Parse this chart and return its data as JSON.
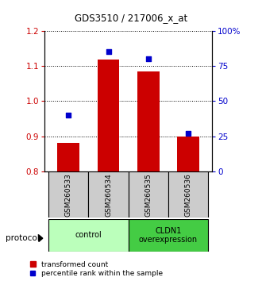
{
  "title": "GDS3510 / 217006_x_at",
  "samples": [
    "GSM260533",
    "GSM260534",
    "GSM260535",
    "GSM260536"
  ],
  "transformed_count": [
    0.882,
    1.118,
    1.085,
    0.9
  ],
  "percentile_rank": [
    40,
    85,
    80,
    27
  ],
  "bar_color": "#cc0000",
  "dot_color": "#0000cc",
  "left_ylim": [
    0.8,
    1.2
  ],
  "left_yticks": [
    0.8,
    0.9,
    1.0,
    1.1,
    1.2
  ],
  "right_ylim": [
    0,
    100
  ],
  "right_yticks": [
    0,
    25,
    50,
    75,
    100
  ],
  "right_yticklabels": [
    "0",
    "25",
    "50",
    "75",
    "100%"
  ],
  "groups": [
    {
      "label": "control",
      "indices": [
        0,
        1
      ],
      "color": "#bbffbb"
    },
    {
      "label": "CLDN1\noverexpression",
      "indices": [
        2,
        3
      ],
      "color": "#44cc44"
    }
  ],
  "protocol_label": "protocol",
  "legend_bar_label": "transformed count",
  "legend_dot_label": "percentile rank within the sample",
  "bar_width": 0.55,
  "bar_baseline": 0.8,
  "gray_color": "#cccccc"
}
